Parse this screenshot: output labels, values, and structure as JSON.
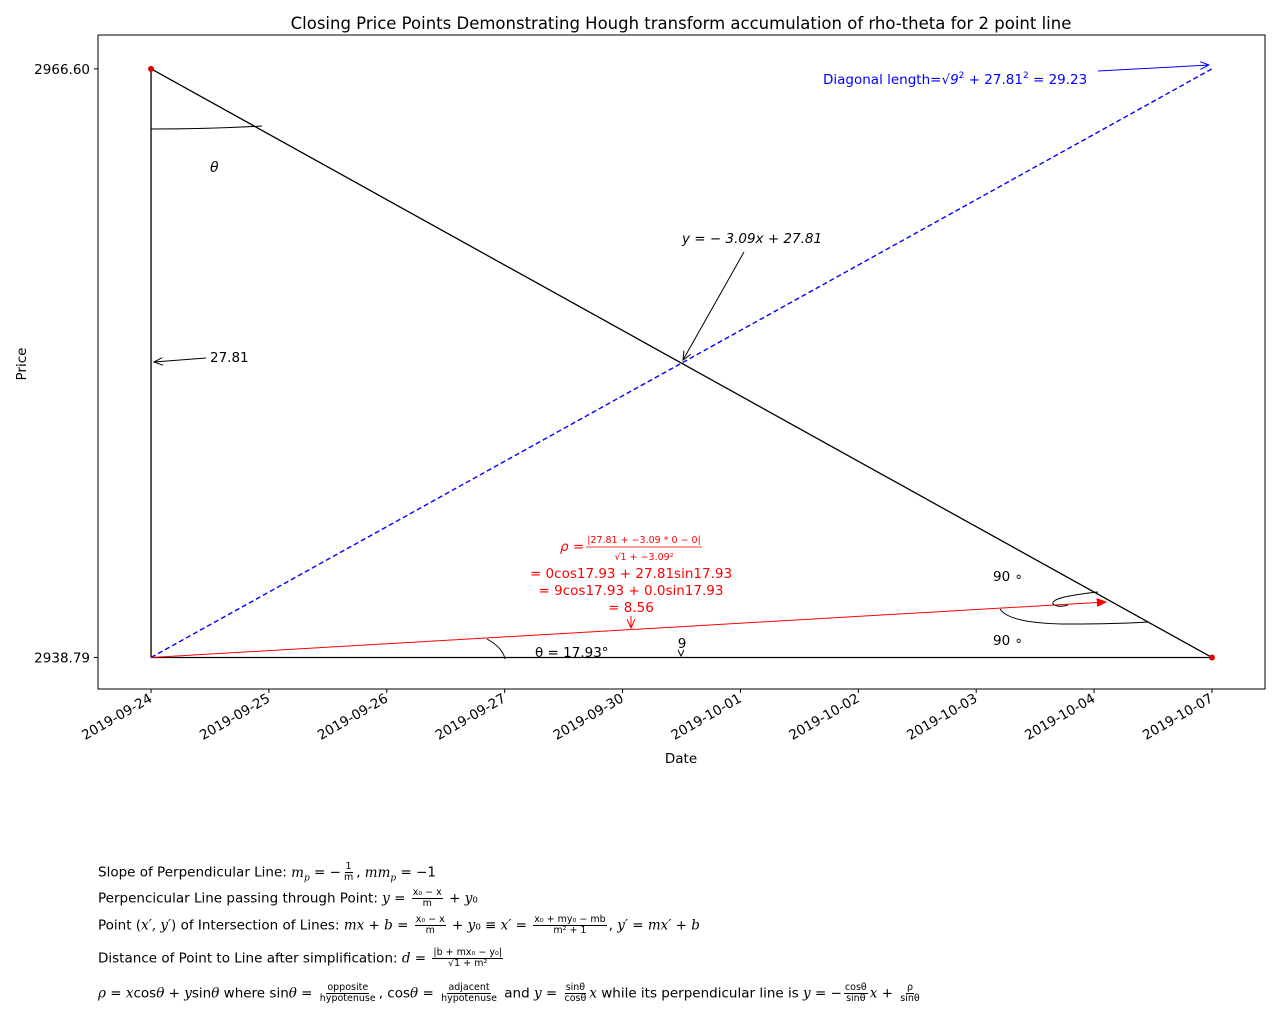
{
  "chart_data": {
    "type": "line",
    "title": "Closing Price Points Demonstrating Hough transform accumulation of rho-theta for 2 point line",
    "xlabel": "Date",
    "ylabel": "Price",
    "x_ticks": [
      "2019-09-24",
      "2019-09-25",
      "2019-09-26",
      "2019-09-27",
      "2019-09-30",
      "2019-10-01",
      "2019-10-02",
      "2019-10-03",
      "2019-10-04",
      "2019-10-07"
    ],
    "y_ticks": [
      "2966.60",
      "2938.79"
    ],
    "xlim": [
      -0.45,
      9.45
    ],
    "ylim": [
      2937.3,
      2968.2
    ],
    "points": [
      {
        "x": 0,
        "y": 2966.6
      },
      {
        "x": 9,
        "y": 2938.79
      }
    ],
    "series": [
      {
        "kind": "line",
        "color": "#000000",
        "x": [
          0,
          9
        ],
        "y": [
          2966.6,
          2938.79
        ]
      },
      {
        "kind": "vertical-side",
        "color": "#000000",
        "x": [
          0,
          0
        ],
        "y": [
          2938.79,
          2966.6
        ]
      },
      {
        "kind": "horizontal-side",
        "color": "#000000",
        "x": [
          0,
          9
        ],
        "y": [
          2938.79,
          2938.79
        ]
      },
      {
        "kind": "diagonal",
        "color": "#0000ff",
        "x": [
          0,
          9
        ],
        "y": [
          2938.79,
          2966.6
        ]
      },
      {
        "kind": "perpendicular",
        "color": "#ff0000",
        "x": [
          0,
          8.1
        ],
        "y": [
          2938.79,
          2941.41
        ]
      }
    ],
    "annotations": {
      "diagonal": "Diagonal length=√9² + 27.81² = 29.23",
      "line_eq": "y = −3.09x + 27.81",
      "vertical_len": "27.81",
      "theta_top": "θ",
      "theta_bottom": "θ = 17.93°",
      "horizontal_len": "9",
      "right_angle_top": "90 ∘",
      "right_angle_bottom": "90 ∘",
      "rho_label": "ρ =",
      "rho_num": "|27.81 + −3.09 * 0 − 0|",
      "rho_den": "√1 + −3.09²",
      "rho_line2": "= 0cos17.93 + 27.81sin17.93",
      "rho_line3": "= 9cos17.93 + 0.0sin17.93",
      "rho_line4": "= 8.56"
    },
    "colors": {
      "line": "#000000",
      "diagonal": "#0000ff",
      "rho": "#ff0000",
      "points": "#ff0000"
    },
    "grid": false,
    "legend": "none"
  },
  "footnotes": {
    "line1": "Slope of Perpendicular Line: m_p = −1/m, mm_p = −1",
    "line2": "Perpencicular Line passing through Point: y = (x₀ − x)/m + y₀",
    "line3": "Point (x′, y′) of Intersection of Lines: mx + b = (x₀ − x)/m + y₀ ≡ x′ = (x₀ + my₀ − mb)/(m² + 1), y′ = mx′ + b",
    "line4": "Distance of Point to Line after simplification: d = |b + mx₀ − y₀|/√(1 + m²)",
    "line5": "ρ = xcosθ + ysinθ where sinθ = opposite/hypotenuse, cosθ = adjacent/hypotenuse and y = (sinθ/cosθ)x while its perpendicular line is y = −(cosθ/sinθ)x + ρ/sinθ"
  }
}
